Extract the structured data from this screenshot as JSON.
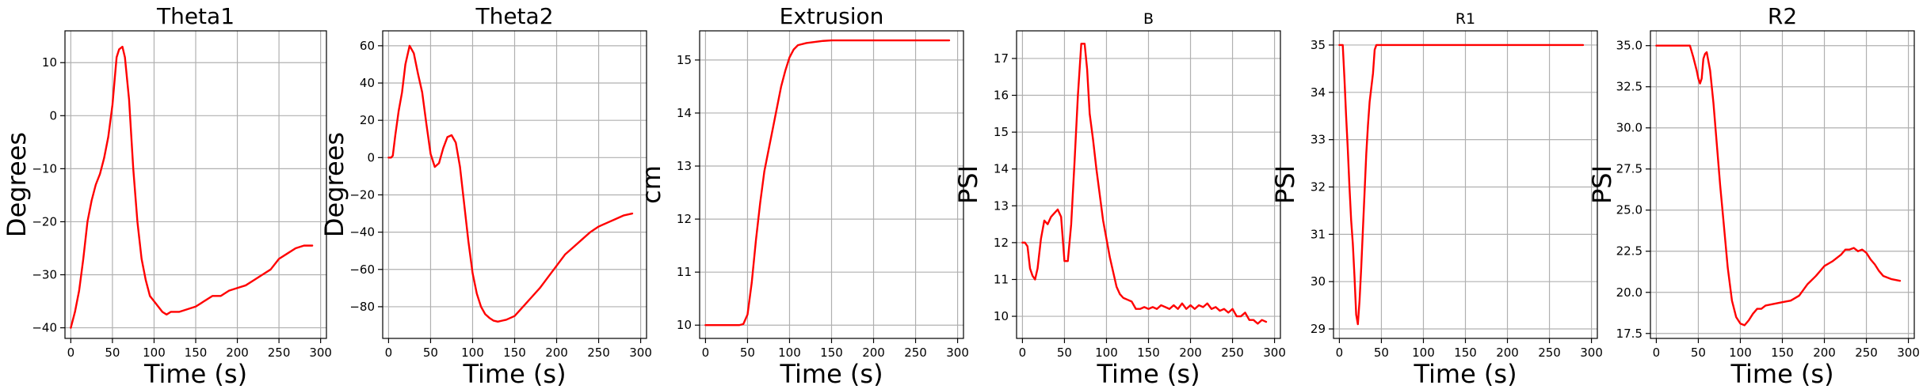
{
  "colors": {
    "series": "#ff0000",
    "grid": "#b0b0b0",
    "axes": "#000000",
    "background": "#ffffff"
  },
  "chart_data": [
    {
      "type": "line",
      "title": "Theta1",
      "xlabel": "Time (s)",
      "ylabel": "Degrees",
      "xlim": [
        -7,
        307
      ],
      "ylim": [
        -42,
        16
      ],
      "xticks": [
        0,
        50,
        100,
        150,
        200,
        250,
        300
      ],
      "yticks": [
        -40,
        -30,
        -20,
        -10,
        0,
        10
      ],
      "grid": true,
      "series": [
        {
          "x": [
            0,
            5,
            10,
            15,
            20,
            25,
            30,
            35,
            40,
            45,
            50,
            55,
            58,
            62,
            65,
            70,
            75,
            80,
            85,
            90,
            95,
            100,
            105,
            110,
            115,
            120,
            125,
            130,
            140,
            150,
            160,
            170,
            180,
            190,
            200,
            210,
            220,
            230,
            240,
            250,
            260,
            270,
            280,
            290
          ],
          "y": [
            -40,
            -37,
            -33,
            -27,
            -20,
            -16,
            -13,
            -11,
            -8,
            -4,
            2,
            11,
            12.5,
            13,
            11,
            3,
            -10,
            -20,
            -27,
            -31,
            -34,
            -35,
            -36,
            -37,
            -37.5,
            -37,
            -37,
            -37,
            -36.5,
            -36,
            -35,
            -34,
            -34,
            -33,
            -32.5,
            -32,
            -31,
            -30,
            -29,
            -27,
            -26,
            -25,
            -24.5,
            -24.5
          ]
        }
      ]
    },
    {
      "type": "line",
      "title": "Theta2",
      "xlabel": "Time (s)",
      "ylabel": "Degrees",
      "xlim": [
        -7,
        307
      ],
      "ylim": [
        -97,
        68
      ],
      "xticks": [
        0,
        50,
        100,
        150,
        200,
        250,
        300
      ],
      "yticks": [
        -80,
        -60,
        -40,
        -20,
        0,
        20,
        40,
        60
      ],
      "grid": true,
      "series": [
        {
          "x": [
            0,
            3,
            5,
            8,
            12,
            16,
            20,
            25,
            30,
            35,
            40,
            45,
            50,
            55,
            60,
            65,
            70,
            75,
            80,
            85,
            90,
            95,
            100,
            105,
            110,
            115,
            120,
            125,
            130,
            140,
            150,
            160,
            170,
            180,
            190,
            200,
            210,
            220,
            230,
            240,
            250,
            260,
            270,
            280,
            290
          ],
          "y": [
            0,
            0,
            1,
            12,
            25,
            35,
            50,
            60,
            56,
            45,
            35,
            18,
            2,
            -5,
            -3,
            5,
            11,
            12,
            8,
            -5,
            -25,
            -45,
            -62,
            -73,
            -80,
            -84,
            -86,
            -87.5,
            -88,
            -87,
            -85,
            -80,
            -75,
            -70,
            -64,
            -58,
            -52,
            -48,
            -44,
            -40,
            -37,
            -35,
            -33,
            -31,
            -30
          ]
        }
      ]
    },
    {
      "type": "line",
      "title": "Extrusion",
      "xlabel": "Time (s)",
      "ylabel": "cm",
      "xlim": [
        -7,
        307
      ],
      "ylim": [
        9.75,
        15.55
      ],
      "xticks": [
        0,
        50,
        100,
        150,
        200,
        250,
        300
      ],
      "yticks": [
        10,
        11,
        12,
        13,
        14,
        15
      ],
      "grid": true,
      "series": [
        {
          "x": [
            0,
            10,
            20,
            30,
            40,
            45,
            50,
            55,
            60,
            65,
            70,
            75,
            80,
            85,
            90,
            95,
            100,
            105,
            110,
            120,
            130,
            140,
            150,
            200,
            250,
            290
          ],
          "y": [
            10,
            10,
            10,
            10,
            10,
            10.02,
            10.2,
            10.8,
            11.6,
            12.3,
            12.9,
            13.3,
            13.7,
            14.1,
            14.5,
            14.8,
            15.05,
            15.2,
            15.28,
            15.32,
            15.34,
            15.36,
            15.37,
            15.37,
            15.37,
            15.37
          ]
        }
      ]
    },
    {
      "type": "line",
      "title": "B",
      "xlabel": "Time (s)",
      "ylabel": "PSI",
      "xlim": [
        -7,
        307
      ],
      "ylim": [
        9.4,
        17.75
      ],
      "xticks": [
        0,
        50,
        100,
        150,
        200,
        250,
        300
      ],
      "yticks": [
        10,
        11,
        12,
        13,
        14,
        15,
        16,
        17
      ],
      "grid": true,
      "series": [
        {
          "x": [
            0,
            3,
            6,
            9,
            12,
            15,
            18,
            22,
            26,
            30,
            34,
            38,
            42,
            46,
            50,
            54,
            58,
            62,
            66,
            70,
            74,
            77,
            80,
            84,
            88,
            92,
            96,
            100,
            104,
            108,
            112,
            116,
            120,
            125,
            130,
            135,
            140,
            145,
            150,
            155,
            160,
            165,
            170,
            175,
            180,
            185,
            190,
            195,
            200,
            205,
            210,
            215,
            220,
            225,
            230,
            235,
            240,
            245,
            250,
            255,
            260,
            265,
            270,
            275,
            280,
            285,
            290
          ],
          "y": [
            12,
            12,
            11.9,
            11.3,
            11.1,
            11.0,
            11.3,
            12.1,
            12.6,
            12.5,
            12.7,
            12.8,
            12.9,
            12.7,
            11.5,
            11.5,
            12.5,
            14.2,
            16,
            17.4,
            17.4,
            16.7,
            15.5,
            14.8,
            14.0,
            13.3,
            12.6,
            12.1,
            11.6,
            11.2,
            10.8,
            10.6,
            10.5,
            10.45,
            10.4,
            10.2,
            10.2,
            10.25,
            10.2,
            10.25,
            10.2,
            10.3,
            10.25,
            10.2,
            10.3,
            10.2,
            10.35,
            10.2,
            10.3,
            10.2,
            10.3,
            10.25,
            10.35,
            10.2,
            10.25,
            10.15,
            10.2,
            10.1,
            10.2,
            10.0,
            10.0,
            10.1,
            9.9,
            9.9,
            9.8,
            9.9,
            9.85
          ]
        }
      ]
    },
    {
      "type": "line",
      "title": "R1",
      "xlabel": "Time (s)",
      "ylabel": "PSI",
      "xlim": [
        -7,
        307
      ],
      "ylim": [
        28.8,
        35.3
      ],
      "xticks": [
        0,
        50,
        100,
        150,
        200,
        250,
        300
      ],
      "yticks": [
        29,
        30,
        31,
        32,
        33,
        34,
        35
      ],
      "grid": true,
      "series": [
        {
          "x": [
            0,
            4,
            6,
            8,
            10,
            12,
            14,
            16,
            18,
            20,
            22,
            24,
            26,
            28,
            30,
            32,
            34,
            36,
            38,
            40,
            42,
            44,
            50,
            100,
            150,
            200,
            250,
            290
          ],
          "y": [
            35,
            35,
            34.3,
            33.5,
            32.8,
            32.0,
            31.3,
            30.8,
            30.1,
            29.3,
            29.1,
            29.6,
            30.3,
            31.1,
            31.9,
            32.7,
            33.3,
            33.8,
            34.1,
            34.4,
            34.9,
            35,
            35,
            35,
            35,
            35,
            35,
            35
          ]
        }
      ]
    },
    {
      "type": "line",
      "title": "R2",
      "xlabel": "Time (s)",
      "ylabel": "PSI",
      "xlim": [
        -7,
        307
      ],
      "ylim": [
        17.2,
        35.9
      ],
      "xticks": [
        0,
        50,
        100,
        150,
        200,
        250,
        300
      ],
      "yticks": [
        17.5,
        20.0,
        22.5,
        25.0,
        27.5,
        30.0,
        32.5,
        35.0
      ],
      "grid": true,
      "series": [
        {
          "x": [
            0,
            10,
            20,
            30,
            40,
            44,
            48,
            50,
            52,
            54,
            56,
            58,
            60,
            64,
            68,
            72,
            76,
            80,
            85,
            90,
            95,
            100,
            105,
            110,
            115,
            120,
            125,
            130,
            140,
            150,
            160,
            170,
            180,
            190,
            200,
            210,
            220,
            225,
            230,
            235,
            240,
            245,
            250,
            255,
            260,
            265,
            270,
            280,
            290
          ],
          "y": [
            35,
            35,
            35,
            35,
            35,
            34.3,
            33.5,
            33.0,
            32.7,
            33.0,
            34.2,
            34.5,
            34.6,
            33.5,
            31.5,
            29.0,
            26.5,
            24.3,
            21.5,
            19.5,
            18.5,
            18.1,
            18.0,
            18.3,
            18.7,
            19.0,
            19.0,
            19.2,
            19.3,
            19.4,
            19.5,
            19.8,
            20.5,
            21.0,
            21.6,
            21.9,
            22.3,
            22.6,
            22.6,
            22.7,
            22.5,
            22.6,
            22.4,
            22.0,
            21.7,
            21.3,
            21.0,
            20.8,
            20.7
          ]
        }
      ]
    }
  ]
}
